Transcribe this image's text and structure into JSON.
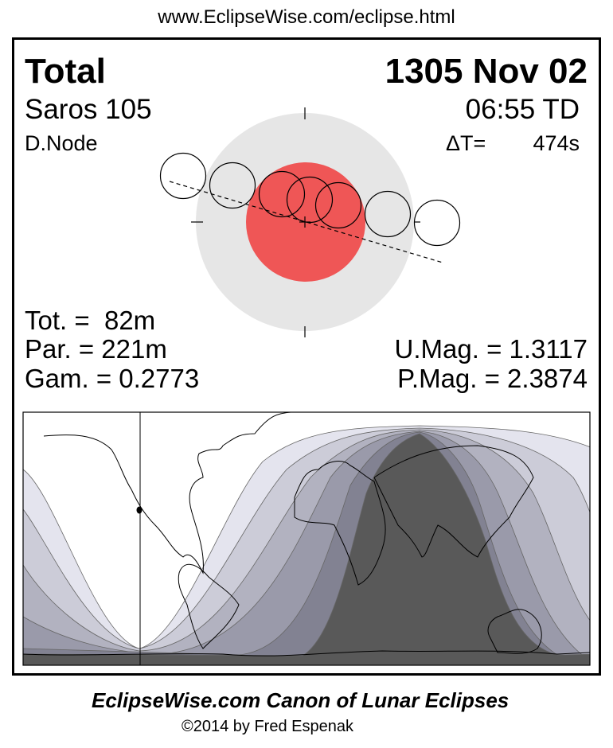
{
  "header_url": "www.EclipseWise.com/eclipse.html",
  "eclipse": {
    "type": "Total",
    "date": "1305 Nov 02",
    "saros": "Saros 105",
    "time": "06:55 TD",
    "node": "D.Node",
    "delta_t_label": "ΔT=",
    "delta_t_value": "474s"
  },
  "stats": {
    "tot": "Tot. =  82m",
    "par": "Par. = 221m",
    "gam": "Gam. = 0.2773",
    "umag": "U.Mag. = 1.3117",
    "pmag": "P.Mag. = 2.3874"
  },
  "colors": {
    "penumbra": "#e6e6e6",
    "umbra": "#ef5656",
    "map_bands": [
      "#e4e4ee",
      "#ccccd8",
      "#b2b2c0",
      "#9a9aaa",
      "#828292",
      "#595959"
    ]
  },
  "footer": {
    "title": "EclipseWise.com Canon of Lunar Eclipses",
    "copyright": "©2014 by Fred Espenak"
  }
}
